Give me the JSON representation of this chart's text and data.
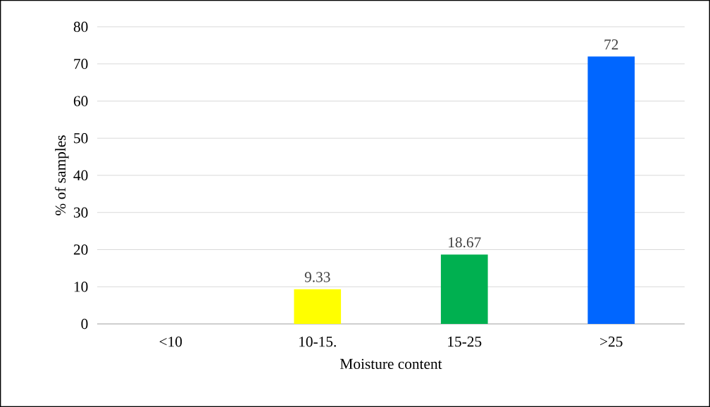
{
  "chart_data": {
    "type": "bar",
    "xlabel": "Moisture content",
    "ylabel": "% of samples",
    "categories": [
      "<10",
      "10-15.",
      "15-25",
      ">25"
    ],
    "values": [
      0,
      9.33,
      18.67,
      72
    ],
    "value_labels": [
      null,
      "9.33",
      "18.67",
      "72"
    ],
    "colors": [
      "#4472c4",
      "#ffff00",
      "#00b050",
      "#0066ff"
    ],
    "ylim": [
      0,
      80
    ],
    "yticks": [
      0,
      10,
      20,
      30,
      40,
      50,
      60,
      70,
      80
    ],
    "grid": "y"
  }
}
